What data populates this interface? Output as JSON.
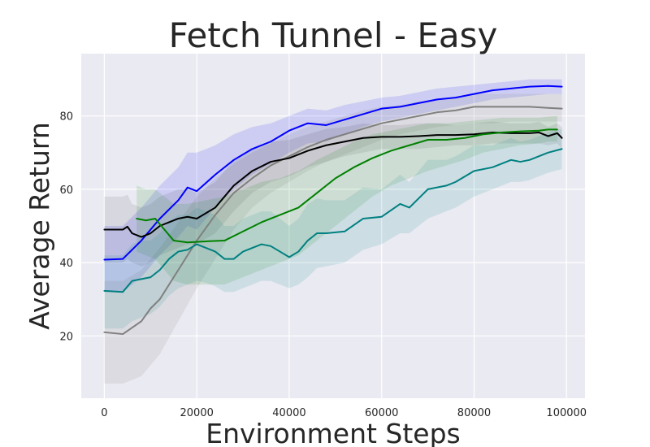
{
  "chart_data": {
    "type": "line",
    "title": "Fetch Tunnel - Easy",
    "xlabel": "Environment Steps",
    "ylabel": "Average Return",
    "xlim": [
      -5000,
      104000
    ],
    "ylim": [
      3,
      97
    ],
    "xticks": [
      0,
      20000,
      40000,
      60000,
      80000,
      100000
    ],
    "yticks": [
      20,
      40,
      60,
      80
    ],
    "grid": true,
    "legend": "none",
    "colors": {
      "background": "#eaeaf2",
      "grid": "#ffffff",
      "text": "#262626"
    },
    "series": [
      {
        "color": "#0000ff",
        "band_opacity": 0.12,
        "x": [
          0,
          4000,
          8000,
          12000,
          16000,
          18000,
          20000,
          24000,
          28000,
          32000,
          36000,
          40000,
          44000,
          48000,
          52000,
          56000,
          60000,
          64000,
          68000,
          72000,
          76000,
          80000,
          84000,
          88000,
          92000,
          96000,
          99000
        ],
        "y": [
          40.8,
          41,
          46,
          52,
          57,
          60.5,
          59.5,
          64,
          68,
          71,
          73,
          76,
          78,
          77.5,
          79,
          80.5,
          82,
          82.5,
          83.5,
          84.5,
          85,
          86,
          87,
          87.5,
          88,
          88.2,
          88
        ],
        "lower": [
          32,
          32,
          36,
          42,
          47,
          50,
          49,
          55,
          60,
          64,
          67,
          70,
          72.5,
          73,
          75,
          77,
          78.5,
          79.5,
          80.5,
          81.5,
          82.5,
          83.5,
          84.5,
          85,
          85.5,
          86,
          86
        ],
        "upper": [
          50,
          50,
          55,
          61,
          66,
          70,
          70,
          72,
          75,
          77,
          78,
          80,
          82,
          81.5,
          83,
          84,
          85,
          85.5,
          86.5,
          87.5,
          88,
          88.5,
          89,
          89.5,
          90,
          90,
          90
        ]
      },
      {
        "color": "#808080",
        "band_opacity": 0.14,
        "x": [
          0,
          4000,
          8000,
          10000,
          12000,
          16000,
          20000,
          24000,
          28000,
          32000,
          36000,
          40000,
          44000,
          48000,
          52000,
          56000,
          60000,
          64000,
          68000,
          72000,
          76000,
          80000,
          84000,
          88000,
          92000,
          96000,
          99000
        ],
        "y": [
          21,
          20.5,
          24,
          27.5,
          30,
          38,
          46,
          53,
          59,
          63,
          66.5,
          69,
          71.5,
          73.5,
          75,
          76.5,
          78,
          79,
          80,
          81,
          81.5,
          82.5,
          82.5,
          82.5,
          82.5,
          82.2,
          82
        ],
        "lower": [
          7,
          7,
          9,
          12,
          15,
          24,
          33,
          41,
          49,
          55,
          59,
          62,
          65,
          67.5,
          69.5,
          71.5,
          73.5,
          75,
          76,
          77,
          77.5,
          78,
          78,
          78.5,
          78.5,
          78.5,
          78.5
        ],
        "upper": [
          35,
          35,
          38,
          41,
          44,
          51,
          58,
          63,
          67,
          70,
          72.5,
          75,
          77,
          78.5,
          80,
          81.5,
          82.5,
          83,
          84,
          84.5,
          85,
          86,
          86,
          86,
          86,
          86,
          86
        ]
      },
      {
        "color": "#000000",
        "band_opacity": 0.08,
        "x": [
          0,
          4000,
          5000,
          6000,
          8000,
          10000,
          12000,
          14000,
          16000,
          18000,
          20000,
          24000,
          28000,
          32000,
          36000,
          40000,
          44000,
          48000,
          52000,
          56000,
          60000,
          64000,
          68000,
          72000,
          76000,
          80000,
          84000,
          88000,
          92000,
          94000,
          96000,
          98000,
          99000
        ],
        "y": [
          49,
          49,
          49.8,
          48,
          47,
          48,
          50,
          51,
          52,
          52.5,
          52,
          55,
          61,
          65,
          67.5,
          68.5,
          70.5,
          72,
          73,
          74,
          74.3,
          74.3,
          74.5,
          74.8,
          74.8,
          75,
          75.5,
          75.3,
          75.3,
          75.5,
          74.5,
          75.3,
          74
        ],
        "lower": [
          40,
          40,
          41,
          40,
          39,
          40,
          42,
          43,
          44,
          45,
          45,
          48,
          54,
          59,
          62,
          63.5,
          66,
          67.5,
          69,
          70,
          71,
          71,
          71,
          71.5,
          72,
          72,
          72.5,
          72.5,
          72.5,
          72.5,
          72,
          72.5,
          71
        ],
        "upper": [
          58,
          58,
          58.5,
          56,
          55,
          56,
          58,
          59,
          60,
          60,
          59,
          62,
          68,
          71,
          73,
          73.5,
          75,
          76.5,
          77,
          78,
          77.5,
          77.5,
          78,
          78,
          77.5,
          78,
          78.5,
          78,
          78,
          78.5,
          77,
          78,
          77
        ]
      },
      {
        "color": "#008000",
        "band_opacity": 0.12,
        "x": [
          7000,
          9000,
          11000,
          13000,
          15000,
          18000,
          22000,
          26000,
          30000,
          34000,
          38000,
          42000,
          46000,
          50000,
          54000,
          58000,
          62000,
          66000,
          70000,
          74000,
          78000,
          82000,
          86000,
          90000,
          94000,
          96000,
          98000
        ],
        "y": [
          52,
          51.5,
          52,
          49,
          46,
          45.5,
          45.8,
          46,
          48.5,
          51,
          53,
          55,
          59,
          63,
          66,
          68.5,
          70.5,
          72,
          73.5,
          73.5,
          74,
          75,
          75.5,
          75.8,
          76,
          76.3,
          76.3
        ],
        "lower": [
          43,
          42,
          41,
          38,
          35,
          34,
          34,
          34,
          36,
          38,
          40,
          42,
          46,
          50,
          54,
          58,
          61,
          63,
          65,
          66.5,
          68,
          70,
          71,
          72,
          72.5,
          73,
          73
        ],
        "upper": [
          61,
          60,
          60,
          58,
          56,
          56,
          57,
          58,
          60,
          62,
          63,
          65,
          68,
          70.5,
          73,
          75,
          76,
          77,
          78,
          78,
          78.5,
          79,
          79.5,
          79.5,
          79.5,
          79.8,
          80
        ]
      },
      {
        "color": "#008080",
        "band_opacity": 0.12,
        "x": [
          0,
          4000,
          6000,
          8000,
          10000,
          12000,
          14000,
          16000,
          18000,
          20000,
          22000,
          24000,
          26000,
          28000,
          30000,
          34000,
          36000,
          38000,
          40000,
          42000,
          44000,
          46000,
          48000,
          52000,
          56000,
          60000,
          64000,
          66000,
          68000,
          70000,
          72000,
          74000,
          76000,
          80000,
          84000,
          86000,
          88000,
          90000,
          92000,
          96000,
          99000
        ],
        "y": [
          32.3,
          32,
          35,
          35.5,
          36,
          38,
          41,
          43,
          43.5,
          45,
          44,
          43,
          41,
          41,
          43,
          45,
          44.5,
          43,
          41.5,
          43,
          46,
          48,
          48,
          48.5,
          52,
          52.5,
          56,
          55,
          57.5,
          60,
          60.5,
          61,
          62,
          65,
          66,
          67,
          68,
          67.5,
          68,
          70,
          71
        ],
        "lower": [
          22,
          22,
          24,
          25,
          26,
          28,
          31,
          33,
          34,
          35,
          34.5,
          33.5,
          32,
          32,
          33,
          35,
          35,
          34,
          33,
          34,
          36,
          38.5,
          39,
          40,
          43.5,
          45,
          48,
          48,
          50,
          52,
          53,
          54,
          55,
          58,
          60,
          61,
          62,
          62,
          62.5,
          64.5,
          65.5
        ],
        "upper": [
          42,
          42,
          45,
          46,
          46,
          48,
          51,
          53,
          53,
          55,
          54,
          53,
          50,
          50,
          52,
          54,
          54,
          52,
          50,
          52,
          56,
          57.5,
          57,
          57,
          60.5,
          60,
          64,
          62,
          65,
          68,
          68,
          68,
          69,
          72,
          72,
          73,
          74,
          73,
          73.5,
          75.5,
          76.5
        ]
      }
    ]
  }
}
